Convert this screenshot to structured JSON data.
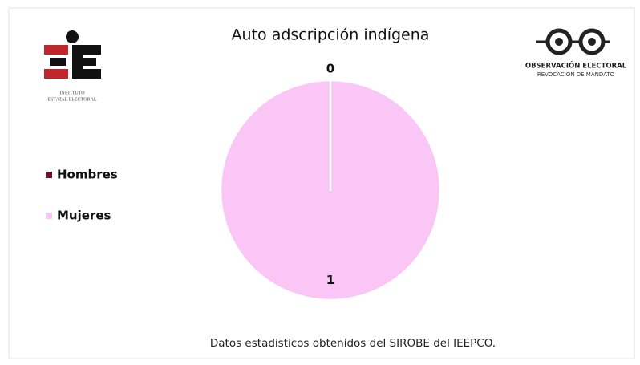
{
  "chart_data": {
    "type": "pie",
    "title": "Auto adscripción indígena",
    "categories": [
      "Hombres",
      "Mujeres"
    ],
    "values": [
      0,
      1
    ],
    "colors": [
      "#6b0f2e",
      "#f9c6f6"
    ],
    "legend": "left",
    "source": "Datos estadisticos obtenidos del SIROBE del IEEPCO."
  },
  "logo_left": {
    "lines": [
      "INSTITUTO",
      "ESTATAL ELECTORAL"
    ]
  },
  "logo_right": {
    "lines": [
      "OBSERVACIÓN ELECTORAL",
      "REVOCACIÓN DE MANDATO"
    ]
  }
}
